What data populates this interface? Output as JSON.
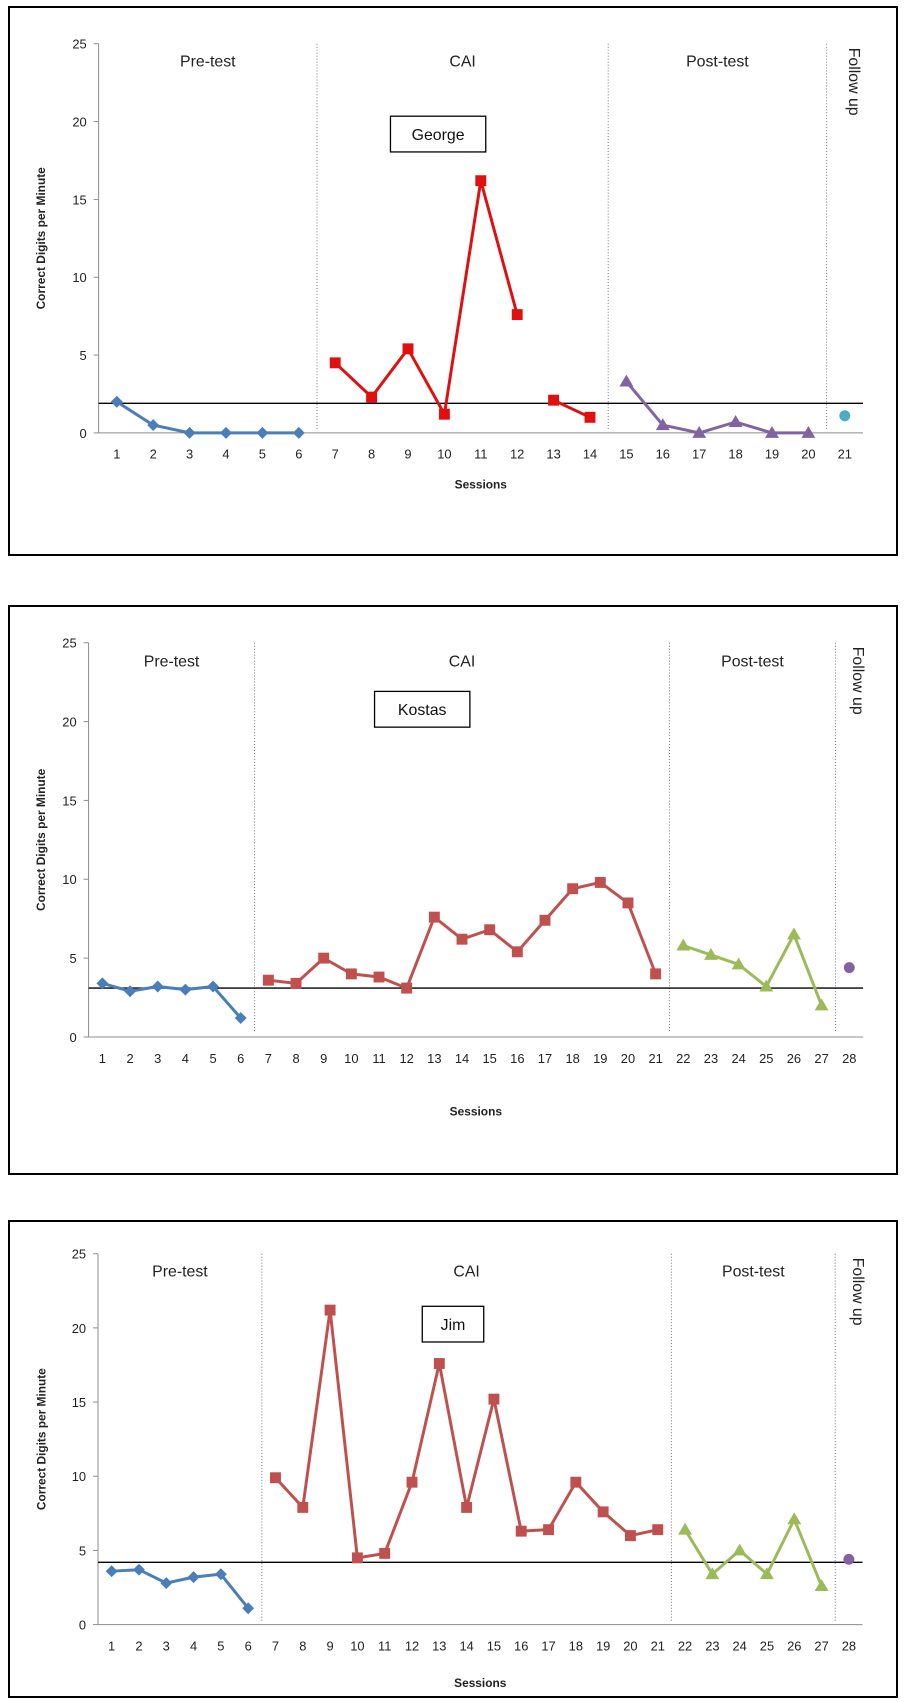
{
  "chart_data": [
    {
      "type": "line",
      "name_label": "George",
      "xlabel": "Sessions",
      "ylabel": "Correct Digits per Minute",
      "ylim": [
        0,
        25
      ],
      "yticks": [
        0,
        5,
        10,
        15,
        20,
        25
      ],
      "x_sessions": 21,
      "baseline": 1.9,
      "phases": [
        {
          "label": "Pre-test",
          "from": 1,
          "to": 6
        },
        {
          "label": "CAI",
          "from": 7,
          "to": 14
        },
        {
          "label": "Post-test",
          "from": 15,
          "to": 20
        },
        {
          "label": "Follow up",
          "from": 21,
          "to": 21,
          "vertical": true
        }
      ],
      "series": [
        {
          "marker": "diamond",
          "color": "#4a7ebb",
          "segments": [
            [
              [
                1,
                2.0
              ],
              [
                2,
                0.5
              ],
              [
                3,
                0.0
              ],
              [
                4,
                0.0
              ],
              [
                5,
                0.0
              ],
              [
                6,
                0.0
              ]
            ]
          ]
        },
        {
          "marker": "square",
          "color": "#e01010",
          "segments": [
            [
              [
                7,
                4.5
              ],
              [
                8,
                2.3
              ],
              [
                9,
                5.4
              ],
              [
                10,
                1.2
              ],
              [
                11,
                16.2
              ],
              [
                12,
                7.6
              ]
            ],
            [
              [
                13,
                2.1
              ],
              [
                14,
                1.0
              ]
            ]
          ]
        },
        {
          "marker": "triangle",
          "color": "#8064a2",
          "segments": [
            [
              [
                15,
                3.3
              ],
              [
                16,
                0.5
              ],
              [
                17,
                0.0
              ],
              [
                18,
                0.7
              ],
              [
                19,
                0.0
              ],
              [
                20,
                0.0
              ]
            ]
          ]
        },
        {
          "marker": "circle",
          "color": "#4bacc6",
          "segments": [
            [
              [
                21,
                1.1
              ]
            ]
          ]
        }
      ]
    },
    {
      "type": "line",
      "name_label": "Kostas",
      "xlabel": "Sessions",
      "ylabel": "Correct Digits per Minute",
      "ylim": [
        0,
        25
      ],
      "yticks": [
        0,
        5,
        10,
        15,
        20,
        25
      ],
      "x_sessions": 28,
      "baseline": 3.1,
      "phases": [
        {
          "label": "Pre-test",
          "from": 1,
          "to": 6
        },
        {
          "label": "CAI",
          "from": 7,
          "to": 21
        },
        {
          "label": "Post-test",
          "from": 22,
          "to": 27
        },
        {
          "label": "Follow up",
          "from": 28,
          "to": 28,
          "vertical": true
        }
      ],
      "series": [
        {
          "marker": "diamond",
          "color": "#4a7ebb",
          "segments": [
            [
              [
                1,
                3.4
              ],
              [
                2,
                2.9
              ],
              [
                3,
                3.2
              ],
              [
                4,
                3.0
              ],
              [
                5,
                3.2
              ],
              [
                6,
                1.2
              ]
            ]
          ]
        },
        {
          "marker": "square",
          "color": "#c0504d",
          "segments": [
            [
              [
                7,
                3.6
              ],
              [
                8,
                3.4
              ],
              [
                9,
                5.0
              ],
              [
                10,
                4.0
              ],
              [
                11,
                3.8
              ],
              [
                12,
                3.1
              ],
              [
                13,
                7.6
              ],
              [
                14,
                6.2
              ],
              [
                15,
                6.8
              ],
              [
                16,
                5.4
              ],
              [
                17,
                7.4
              ],
              [
                18,
                9.4
              ],
              [
                19,
                9.8
              ],
              [
                20,
                8.5
              ],
              [
                21,
                4.0
              ]
            ]
          ]
        },
        {
          "marker": "triangle",
          "color": "#9bbb59",
          "segments": [
            [
              [
                22,
                5.8
              ],
              [
                23,
                5.2
              ],
              [
                24,
                4.6
              ],
              [
                25,
                3.2
              ],
              [
                26,
                6.5
              ],
              [
                27,
                2.0
              ]
            ]
          ]
        },
        {
          "marker": "circle",
          "color": "#8064a2",
          "segments": [
            [
              [
                28,
                4.4
              ]
            ]
          ]
        }
      ]
    },
    {
      "type": "line",
      "name_label": "Jim",
      "xlabel": "Sessions",
      "ylabel": "Correct Digits per Minute",
      "ylim": [
        0,
        25
      ],
      "yticks": [
        0,
        5,
        10,
        15,
        20,
        25
      ],
      "x_sessions": 28,
      "baseline": 4.2,
      "phases": [
        {
          "label": "Pre-test",
          "from": 1,
          "to": 6
        },
        {
          "label": "CAI",
          "from": 7,
          "to": 21
        },
        {
          "label": "Post-test",
          "from": 22,
          "to": 27
        },
        {
          "label": "Follow up",
          "from": 28,
          "to": 28,
          "vertical": true
        }
      ],
      "series": [
        {
          "marker": "diamond",
          "color": "#4a7ebb",
          "segments": [
            [
              [
                1,
                3.6
              ],
              [
                2,
                3.7
              ],
              [
                3,
                2.8
              ],
              [
                4,
                3.2
              ],
              [
                5,
                3.4
              ],
              [
                6,
                1.1
              ]
            ]
          ]
        },
        {
          "marker": "square",
          "color": "#c0504d",
          "segments": [
            [
              [
                7,
                9.9
              ],
              [
                8,
                7.9
              ],
              [
                9,
                21.2
              ],
              [
                10,
                4.5
              ],
              [
                11,
                4.8
              ],
              [
                12,
                9.6
              ],
              [
                13,
                17.6
              ],
              [
                14,
                7.9
              ],
              [
                15,
                15.2
              ],
              [
                16,
                6.3
              ],
              [
                17,
                6.4
              ],
              [
                18,
                9.6
              ],
              [
                19,
                7.6
              ],
              [
                20,
                6.0
              ],
              [
                21,
                6.4
              ]
            ]
          ]
        },
        {
          "marker": "triangle",
          "color": "#9bbb59",
          "segments": [
            [
              [
                22,
                6.4
              ],
              [
                23,
                3.4
              ],
              [
                24,
                5.0
              ],
              [
                25,
                3.4
              ],
              [
                26,
                7.1
              ],
              [
                27,
                2.6
              ]
            ]
          ]
        },
        {
          "marker": "circle",
          "color": "#8064a2",
          "segments": [
            [
              [
                28,
                4.4
              ]
            ]
          ]
        }
      ]
    }
  ]
}
